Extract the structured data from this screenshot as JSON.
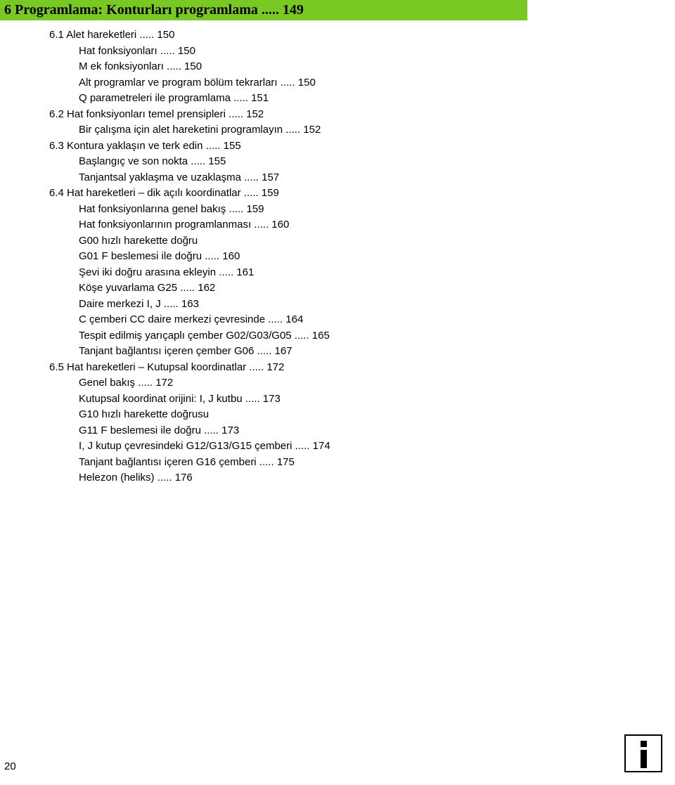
{
  "heading": "6 Programlama: Konturları programlama ..... 149",
  "lines": [
    {
      "indent": 0,
      "text": "6.1 Alet hareketleri ..... 150"
    },
    {
      "indent": 1,
      "text": "Hat fonksiyonları ..... 150"
    },
    {
      "indent": 1,
      "text": "M ek fonksiyonları ..... 150"
    },
    {
      "indent": 1,
      "text": "Alt programlar ve program bölüm tekrarları ..... 150"
    },
    {
      "indent": 1,
      "text": "Q parametreleri ile programlama ..... 151"
    },
    {
      "indent": 0,
      "text": "6.2 Hat fonksiyonları temel prensipleri ..... 152"
    },
    {
      "indent": 1,
      "text": "Bir çalışma için alet hareketini programlayın ..... 152"
    },
    {
      "indent": 0,
      "text": "6.3 Kontura yaklaşın ve terk edin ..... 155"
    },
    {
      "indent": 1,
      "text": "Başlangıç ve son nokta ..... 155"
    },
    {
      "indent": 1,
      "text": "Tanjantsal yaklaşma ve uzaklaşma ..... 157"
    },
    {
      "indent": 0,
      "text": "6.4 Hat hareketleri – dik açılı koordinatlar ..... 159"
    },
    {
      "indent": 1,
      "text": "Hat fonksiyonlarına genel bakış ..... 159"
    },
    {
      "indent": 1,
      "text": "Hat fonksiyonlarının programlanması ..... 160"
    },
    {
      "indent": 1,
      "text": "G00 hızlı harekette doğru"
    },
    {
      "indent": 1,
      "text": "G01 F beslemesi ile doğru ..... 160"
    },
    {
      "indent": 1,
      "text": "Şevi iki doğru arasına ekleyin ..... 161"
    },
    {
      "indent": 1,
      "text": "Köşe yuvarlama G25 ..... 162"
    },
    {
      "indent": 1,
      "text": "Daire merkezi I, J ..... 163"
    },
    {
      "indent": 1,
      "text": "C çemberi CC daire merkezi çevresinde ..... 164"
    },
    {
      "indent": 1,
      "text": "Tespit edilmiş yarıçaplı çember G02/G03/G05 ..... 165"
    },
    {
      "indent": 1,
      "text": "Tanjant bağlantısı içeren çember G06 ..... 167"
    },
    {
      "indent": 0,
      "text": "6.5 Hat hareketleri – Kutupsal koordinatlar ..... 172"
    },
    {
      "indent": 1,
      "text": "Genel bakış ..... 172"
    },
    {
      "indent": 1,
      "text": "Kutupsal koordinat orijini: I, J kutbu ..... 173"
    },
    {
      "indent": 1,
      "text": "G10 hızlı harekette doğrusu"
    },
    {
      "indent": 1,
      "text": "G11 F beslemesi ile doğru ..... 173"
    },
    {
      "indent": 1,
      "text": "I, J kutup çevresindeki G12/G13/G15 çemberi ..... 174"
    },
    {
      "indent": 1,
      "text": "Tanjant bağlantısı içeren G16 çemberi ..... 175"
    },
    {
      "indent": 1,
      "text": "Helezon (heliks) ..... 176"
    }
  ],
  "pageNumber": "20",
  "colors": {
    "heading_bg": "#7ac823",
    "text": "#000000",
    "page_bg": "#ffffff"
  },
  "typography": {
    "heading_font": "Times New Roman",
    "heading_size_pt": 15,
    "body_font": "Arial",
    "body_size_pt": 11
  }
}
